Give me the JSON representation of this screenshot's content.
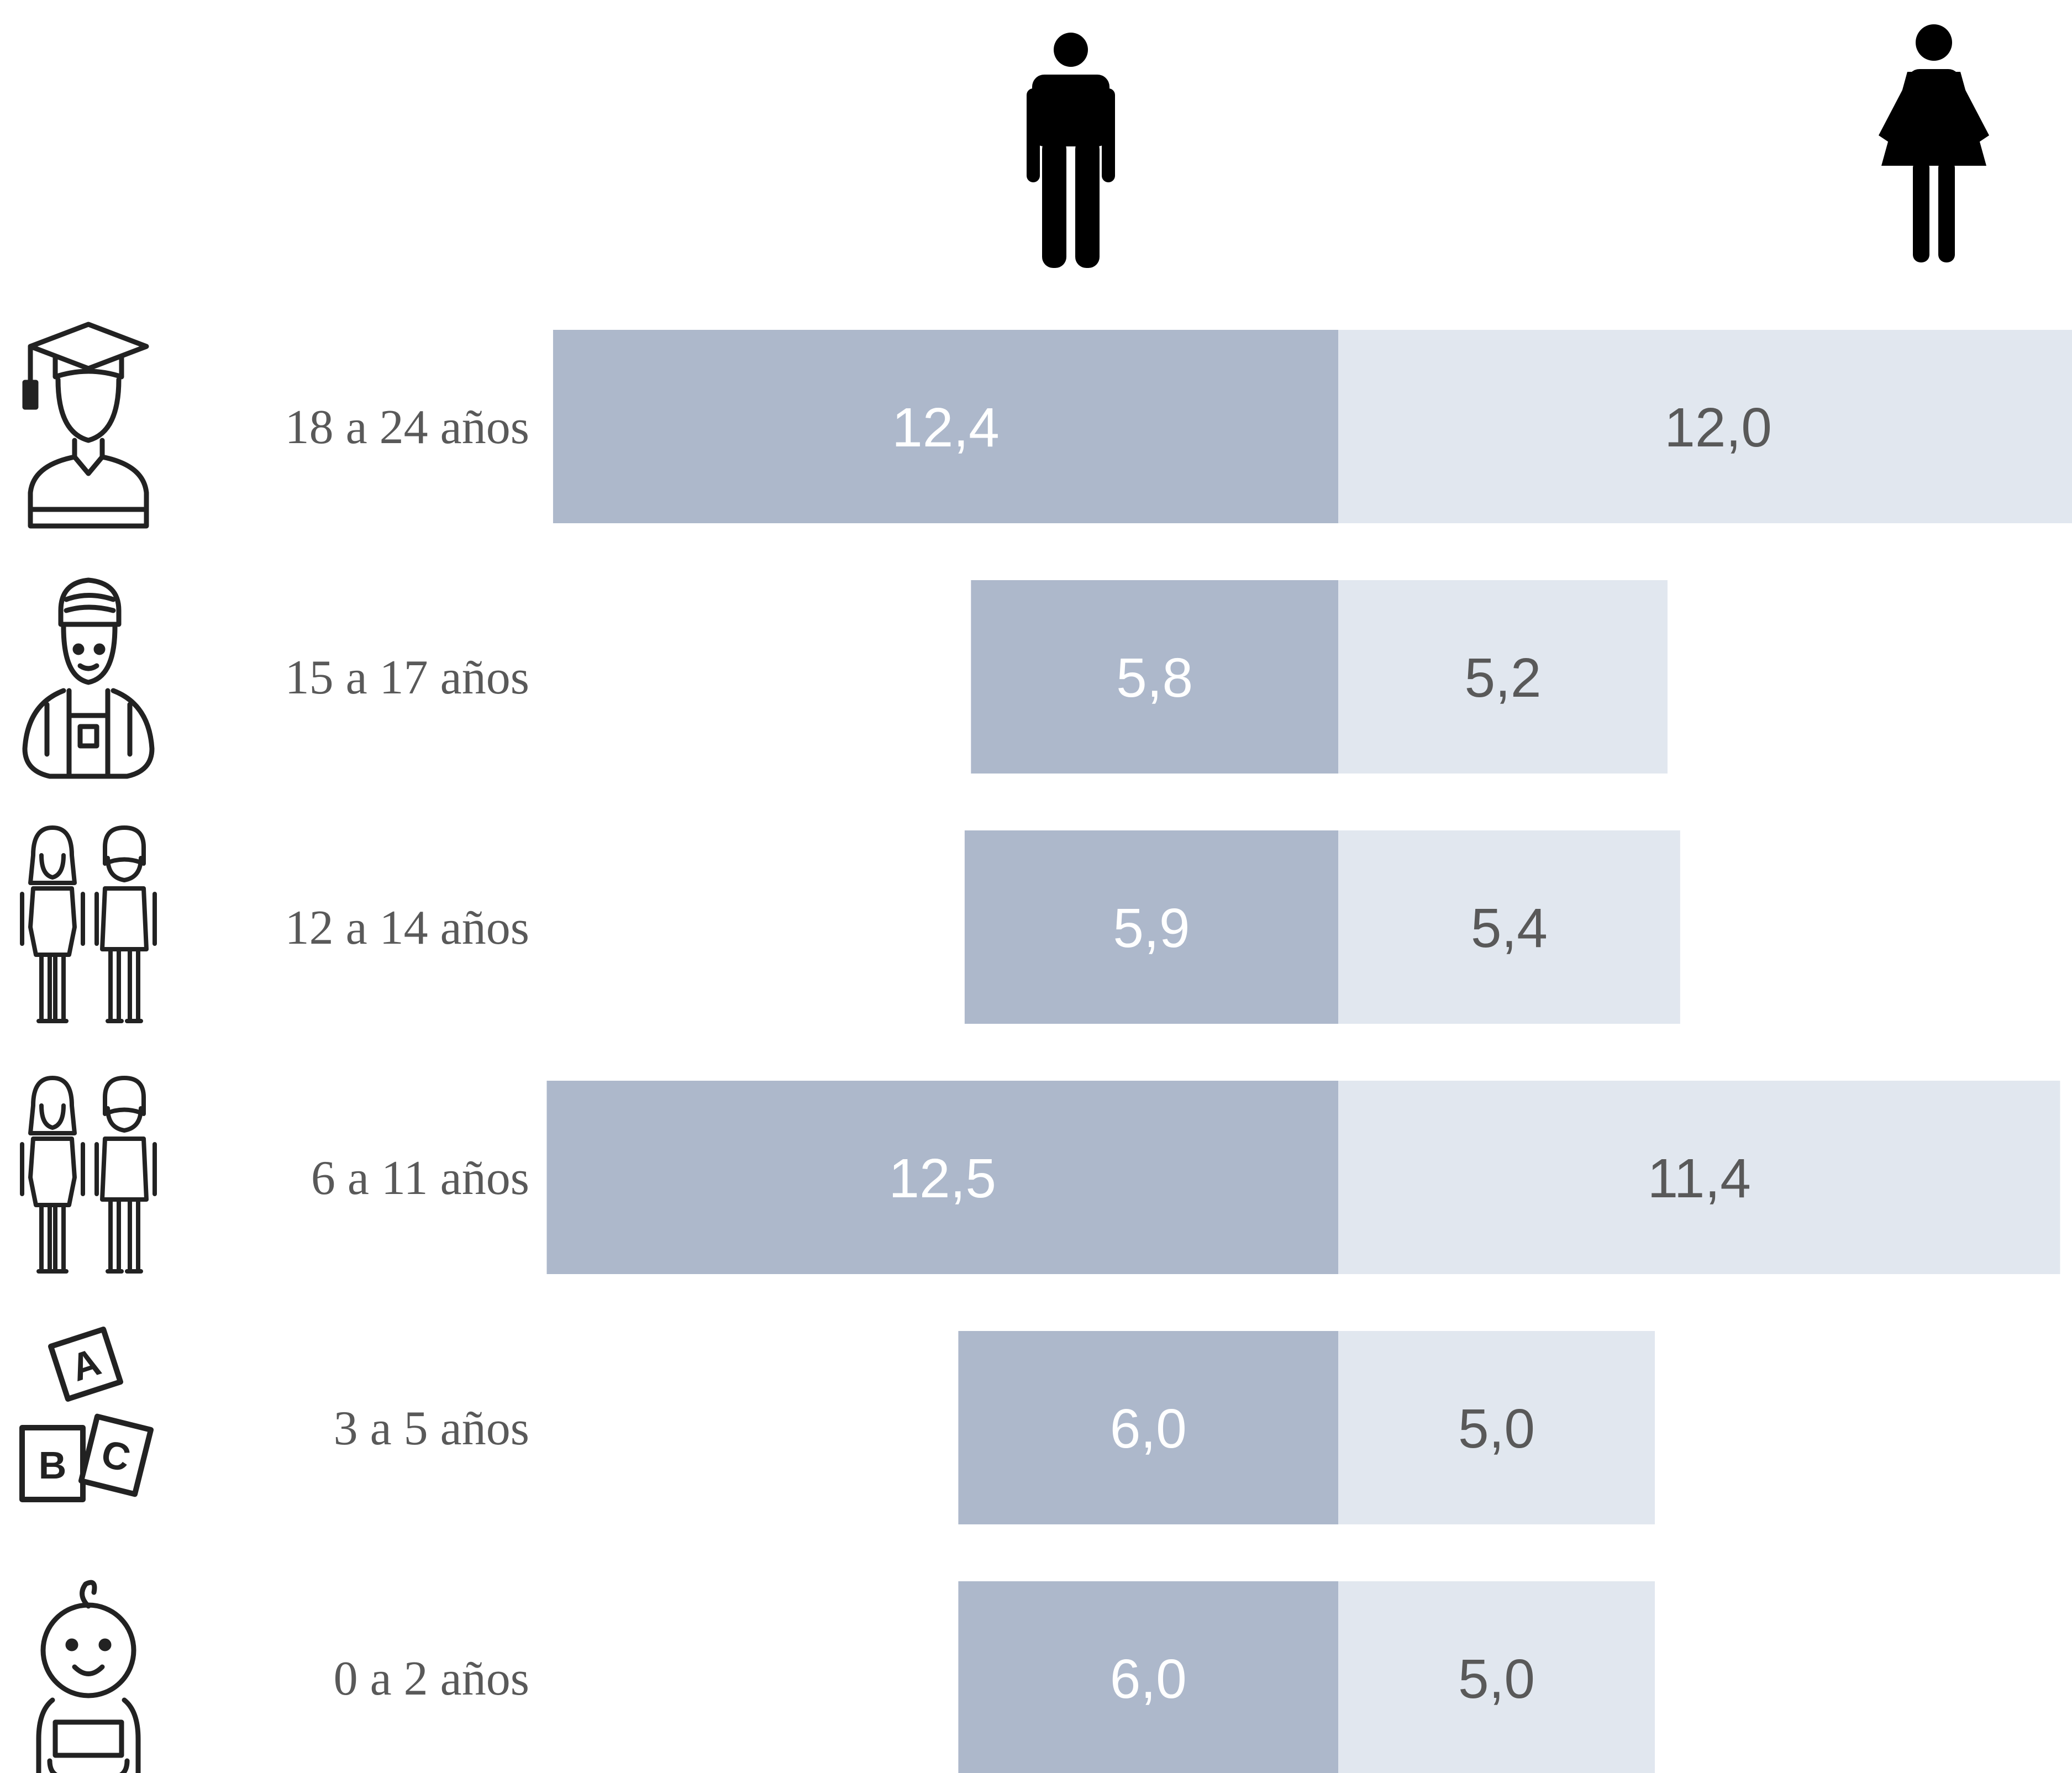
{
  "chart_data": {
    "type": "bar",
    "orientation": "horizontal-diverging",
    "categories": [
      "18 a 24 años",
      "15 a 17 años",
      "12 a 14 años",
      "6 a 11 años",
      "3 a 5 años",
      "0 a 2 años"
    ],
    "series": [
      {
        "values": [
          12.4,
          5.8,
          5.9,
          12.5,
          6.0,
          6.0
        ],
        "value_labels": [
          "12,4",
          "5,8",
          "5,9",
          "12,5",
          "6,0",
          "6,0"
        ],
        "color": "#adb8cb",
        "label_color": "#ffffff"
      },
      {
        "values": [
          12.0,
          5.2,
          5.4,
          11.4,
          5.0,
          5.0
        ],
        "value_labels": [
          "12,0",
          "5,2",
          "5,4",
          "11,4",
          "5,0",
          "5,0"
        ],
        "color": "#e1e7ef",
        "label_color": "#595959"
      }
    ],
    "legend": {
      "placement": "top",
      "symbols": [
        "male-figure-icon",
        "female-figure-icon"
      ]
    },
    "row_icons": [
      "graduate-icon",
      "teenager-icon",
      "school-children-icon",
      "school-children-icon",
      "abc-blocks-icon",
      "baby-icon"
    ],
    "grid": false
  }
}
